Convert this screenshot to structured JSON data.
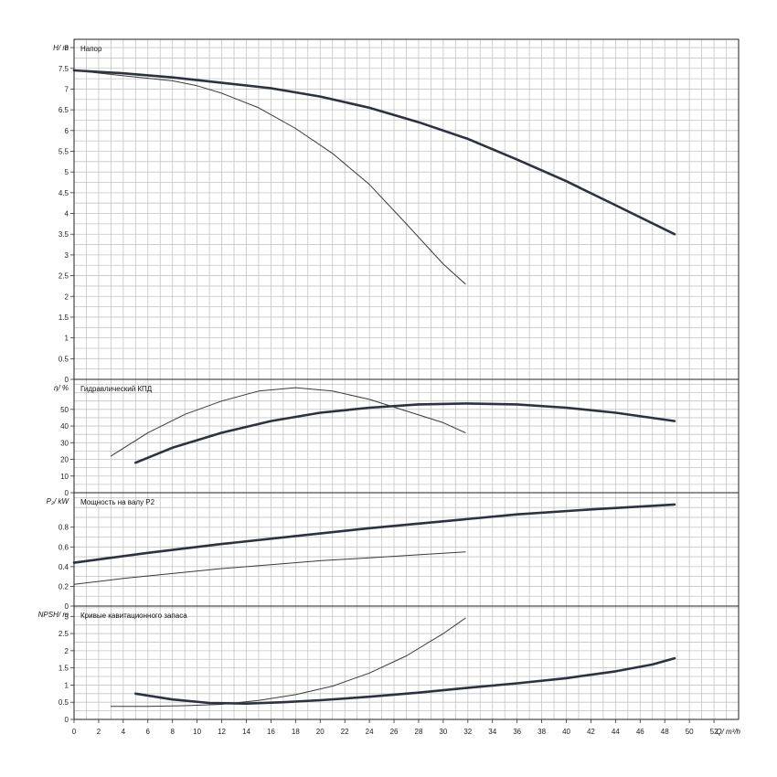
{
  "chart_data": [
    {
      "type": "line",
      "panel": "head",
      "title": "Напор",
      "ylabel": "H/ m",
      "xlim": [
        0,
        54
      ],
      "ylim": [
        0,
        8.2
      ],
      "yticks": [
        "0",
        "0.5",
        "1",
        "1.5",
        "2",
        "2.5",
        "3",
        "3.5",
        "4",
        "4.5",
        "5",
        "5.5",
        "6",
        "6.5",
        "7",
        "7.5",
        "8"
      ],
      "grid": true,
      "series": [
        {
          "style": "thick",
          "x": [
            0,
            4,
            8,
            12,
            16,
            20,
            24,
            28,
            32,
            36,
            40,
            44,
            48.8
          ],
          "y": [
            7.45,
            7.38,
            7.28,
            7.15,
            7.02,
            6.82,
            6.55,
            6.2,
            5.8,
            5.3,
            4.78,
            4.2,
            3.5
          ]
        },
        {
          "style": "thin",
          "x": [
            0,
            4,
            8,
            10,
            12,
            15,
            18,
            21,
            24,
            27,
            30,
            31.8
          ],
          "y": [
            7.45,
            7.32,
            7.2,
            7.08,
            6.9,
            6.55,
            6.05,
            5.45,
            4.7,
            3.75,
            2.78,
            2.3
          ]
        }
      ]
    },
    {
      "type": "line",
      "panel": "efficiency",
      "title": "Гидравлический КПД",
      "ylabel": "η/ %",
      "xlim": [
        0,
        54
      ],
      "ylim": [
        0,
        68
      ],
      "yticks": [
        "0",
        "10",
        "20",
        "30",
        "40",
        "50"
      ],
      "grid": true,
      "series": [
        {
          "style": "thick",
          "x": [
            5,
            8,
            12,
            16,
            20,
            24,
            28,
            32,
            36,
            40,
            44,
            48.8
          ],
          "y": [
            18,
            27,
            36,
            43,
            48,
            51,
            53,
            53.5,
            53,
            51,
            48,
            43
          ]
        },
        {
          "style": "thin",
          "x": [
            3,
            6,
            9,
            12,
            15,
            18,
            21,
            24,
            27,
            30,
            31.8
          ],
          "y": [
            22,
            36,
            47,
            55,
            61,
            63,
            61,
            56,
            49,
            42,
            36
          ]
        }
      ]
    },
    {
      "type": "line",
      "panel": "power",
      "title": "Мощность на валу P2",
      "ylabel": "P₂/ kW",
      "xlim": [
        0,
        54
      ],
      "ylim": [
        0,
        1.15
      ],
      "yticks": [
        "0",
        "0.2",
        "0.4",
        "0.6",
        "0.8"
      ],
      "grid": true,
      "series": [
        {
          "style": "thick",
          "x": [
            0,
            6,
            12,
            18,
            24,
            30,
            36,
            42,
            48.8
          ],
          "y": [
            0.44,
            0.54,
            0.63,
            0.71,
            0.79,
            0.86,
            0.93,
            0.98,
            1.03
          ]
        },
        {
          "style": "thin",
          "x": [
            0,
            4,
            8,
            12,
            16,
            20,
            24,
            28,
            31.8
          ],
          "y": [
            0.22,
            0.28,
            0.33,
            0.38,
            0.42,
            0.46,
            0.49,
            0.52,
            0.55
          ]
        }
      ]
    },
    {
      "type": "line",
      "panel": "npsh",
      "title": "Кривые кавитационного запаса",
      "ylabel": "NPSH/ m",
      "xlabel": "Q/ m³/h",
      "xlim": [
        0,
        54
      ],
      "ylim": [
        0,
        3.3
      ],
      "xticks": [
        "0",
        "2",
        "4",
        "6",
        "8",
        "10",
        "12",
        "14",
        "16",
        "18",
        "20",
        "22",
        "24",
        "26",
        "28",
        "30",
        "32",
        "34",
        "36",
        "38",
        "40",
        "42",
        "44",
        "46",
        "48",
        "50",
        "52"
      ],
      "yticks": [
        "0",
        "0.5",
        "1",
        "1.5",
        "2",
        "2.5",
        "3"
      ],
      "grid": true,
      "series": [
        {
          "style": "thick",
          "x": [
            5,
            8,
            11,
            14,
            17,
            20,
            24,
            28,
            32,
            36,
            40,
            44,
            47,
            48.8
          ],
          "y": [
            0.75,
            0.58,
            0.48,
            0.46,
            0.5,
            0.56,
            0.66,
            0.78,
            0.92,
            1.05,
            1.2,
            1.4,
            1.6,
            1.78
          ]
        },
        {
          "style": "thin",
          "x": [
            3,
            6,
            9,
            12,
            15,
            18,
            21,
            24,
            27,
            30,
            31.8
          ],
          "y": [
            0.38,
            0.38,
            0.4,
            0.44,
            0.55,
            0.72,
            0.97,
            1.35,
            1.85,
            2.5,
            2.95
          ]
        }
      ]
    }
  ]
}
